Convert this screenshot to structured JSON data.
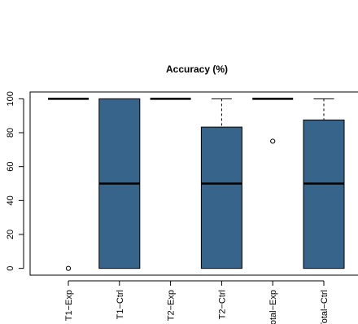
{
  "chart_data": {
    "type": "boxplot",
    "title": "Accuracy (%)",
    "xlabel": "",
    "ylabel": "",
    "ylim": [
      -4,
      104
    ],
    "yticks": [
      0,
      20,
      40,
      60,
      80,
      100
    ],
    "grid": false,
    "categories": [
      "T1−Exp",
      "T1−Ctrl",
      "T2−Exp",
      "T2−Ctrl",
      "Total−Exp",
      "Total−Ctrl"
    ],
    "boxes": [
      {
        "min": 100,
        "q1": 100,
        "median": 100,
        "q3": 100,
        "max": 100,
        "outliers": [
          0
        ]
      },
      {
        "min": 0,
        "q1": 0,
        "median": 50,
        "q3": 100,
        "max": 100,
        "outliers": []
      },
      {
        "min": 100,
        "q1": 100,
        "median": 100,
        "q3": 100,
        "max": 100,
        "outliers": []
      },
      {
        "min": 0,
        "q1": 0,
        "median": 50,
        "q3": 83.3,
        "max": 100,
        "outliers": []
      },
      {
        "min": 100,
        "q1": 100,
        "median": 100,
        "q3": 100,
        "max": 100,
        "outliers": [
          75
        ]
      },
      {
        "min": 0,
        "q1": 0,
        "median": 50,
        "q3": 87.5,
        "max": 100,
        "outliers": []
      }
    ],
    "box_color": "#36648B"
  }
}
